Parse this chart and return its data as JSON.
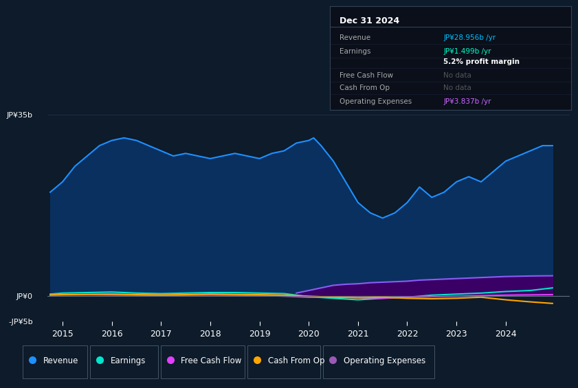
{
  "bg_color": "#0d1b2a",
  "plot_bg_color": "#0d1b2a",
  "grid_color": "#1e3048",
  "text_color": "#ffffff",
  "ylabel_top": "JP¥35b",
  "ylabel_zero": "JP¥0",
  "ylabel_bottom": "-JP¥5b",
  "ylim": [
    -5000000000,
    37000000000
  ],
  "xlim": [
    2014.7,
    2025.3
  ],
  "xticks": [
    2015,
    2016,
    2017,
    2018,
    2019,
    2020,
    2021,
    2022,
    2023,
    2024
  ],
  "info_box": {
    "title": "Dec 31 2024",
    "rows": [
      {
        "label": "Revenue",
        "value": "JP¥28.956b /yr",
        "value_color": "#00bfff"
      },
      {
        "label": "Earnings",
        "value": "JP¥1.499b /yr",
        "value_color": "#00ffcc"
      },
      {
        "label": "",
        "value": "5.2% profit margin",
        "value_color": "#ffffff",
        "bold": true
      },
      {
        "label": "Free Cash Flow",
        "value": "No data",
        "value_color": "#555555"
      },
      {
        "label": "Cash From Op",
        "value": "No data",
        "value_color": "#555555"
      },
      {
        "label": "Operating Expenses",
        "value": "JP¥3.837b /yr",
        "value_color": "#cc66ff"
      }
    ]
  },
  "legend": [
    {
      "label": "Revenue",
      "color": "#1e90ff"
    },
    {
      "label": "Earnings",
      "color": "#00e5cc"
    },
    {
      "label": "Free Cash Flow",
      "color": "#e040fb"
    },
    {
      "label": "Cash From Op",
      "color": "#ffa500"
    },
    {
      "label": "Operating Expenses",
      "color": "#9b59b6"
    }
  ],
  "revenue_x": [
    2014.75,
    2015.0,
    2015.25,
    2015.5,
    2015.75,
    2016.0,
    2016.25,
    2016.5,
    2016.75,
    2017.0,
    2017.25,
    2017.5,
    2017.75,
    2018.0,
    2018.25,
    2018.5,
    2018.75,
    2019.0,
    2019.25,
    2019.5,
    2019.75,
    2020.0,
    2020.1,
    2020.25,
    2020.5,
    2020.75,
    2021.0,
    2021.25,
    2021.5,
    2021.75,
    2022.0,
    2022.25,
    2022.5,
    2022.75,
    2023.0,
    2023.25,
    2023.5,
    2023.75,
    2024.0,
    2024.25,
    2024.5,
    2024.75,
    2024.95
  ],
  "revenue_y": [
    20000000000,
    22000000000,
    25000000000,
    27000000000,
    29000000000,
    30000000000,
    30500000000,
    30000000000,
    29000000000,
    28000000000,
    27000000000,
    27500000000,
    27000000000,
    26500000000,
    27000000000,
    27500000000,
    27000000000,
    26500000000,
    27500000000,
    28000000000,
    29500000000,
    30000000000,
    30500000000,
    29000000000,
    26000000000,
    22000000000,
    18000000000,
    16000000000,
    15000000000,
    16000000000,
    18000000000,
    21000000000,
    19000000000,
    20000000000,
    22000000000,
    23000000000,
    22000000000,
    24000000000,
    26000000000,
    27000000000,
    28000000000,
    29000000000,
    29000000000
  ],
  "revenue_color": "#1e90ff",
  "revenue_fill": "#0a3060",
  "earnings_x": [
    2014.75,
    2015.0,
    2015.5,
    2016.0,
    2016.5,
    2017.0,
    2017.5,
    2018.0,
    2018.5,
    2019.0,
    2019.5,
    2020.0,
    2020.5,
    2021.0,
    2021.5,
    2022.0,
    2022.5,
    2023.0,
    2023.5,
    2024.0,
    2024.5,
    2024.95
  ],
  "earnings_y": [
    300000000,
    500000000,
    600000000,
    700000000,
    500000000,
    400000000,
    500000000,
    600000000,
    600000000,
    500000000,
    400000000,
    -200000000,
    -500000000,
    -800000000,
    -500000000,
    -300000000,
    100000000,
    300000000,
    500000000,
    800000000,
    1000000000,
    1500000000
  ],
  "earnings_color": "#00e5cc",
  "fcf_x": [
    2014.75,
    2015.0,
    2015.5,
    2016.0,
    2016.5,
    2017.0,
    2017.5,
    2018.0,
    2018.5,
    2019.0,
    2019.5,
    2020.0,
    2020.5,
    2021.0,
    2021.5,
    2022.0,
    2022.5,
    2023.0,
    2023.5,
    2024.0,
    2024.5,
    2024.95
  ],
  "fcf_y": [
    100000000,
    150000000,
    200000000,
    150000000,
    100000000,
    50000000,
    100000000,
    150000000,
    100000000,
    50000000,
    -100000000,
    -300000000,
    -200000000,
    -400000000,
    -500000000,
    -300000000,
    -200000000,
    -100000000,
    0,
    100000000,
    150000000,
    200000000
  ],
  "fcf_color": "#e040fb",
  "cfo_x": [
    2014.75,
    2015.0,
    2015.5,
    2016.0,
    2016.5,
    2017.0,
    2017.5,
    2018.0,
    2018.5,
    2019.0,
    2019.5,
    2020.0,
    2020.5,
    2021.0,
    2021.5,
    2022.0,
    2022.5,
    2023.0,
    2023.5,
    2024.0,
    2024.5,
    2024.95
  ],
  "cfo_y": [
    150000000,
    200000000,
    250000000,
    300000000,
    200000000,
    150000000,
    200000000,
    300000000,
    250000000,
    200000000,
    100000000,
    -100000000,
    -300000000,
    -400000000,
    -300000000,
    -500000000,
    -600000000,
    -500000000,
    -300000000,
    -800000000,
    -1200000000,
    -1500000000
  ],
  "cfo_color": "#ffa500",
  "opex_x": [
    2019.75,
    2020.0,
    2020.25,
    2020.5,
    2020.75,
    2021.0,
    2021.25,
    2021.5,
    2021.75,
    2022.0,
    2022.25,
    2022.5,
    2022.75,
    2023.0,
    2023.25,
    2023.5,
    2023.75,
    2024.0,
    2024.25,
    2024.5,
    2024.75,
    2024.95
  ],
  "opex_y": [
    500000000,
    1000000000,
    1500000000,
    2000000000,
    2200000000,
    2300000000,
    2500000000,
    2600000000,
    2700000000,
    2800000000,
    3000000000,
    3100000000,
    3200000000,
    3300000000,
    3400000000,
    3500000000,
    3600000000,
    3700000000,
    3750000000,
    3800000000,
    3830000000,
    3840000000
  ],
  "opex_color": "#8b5cf6",
  "opex_fill": "#3b0066"
}
